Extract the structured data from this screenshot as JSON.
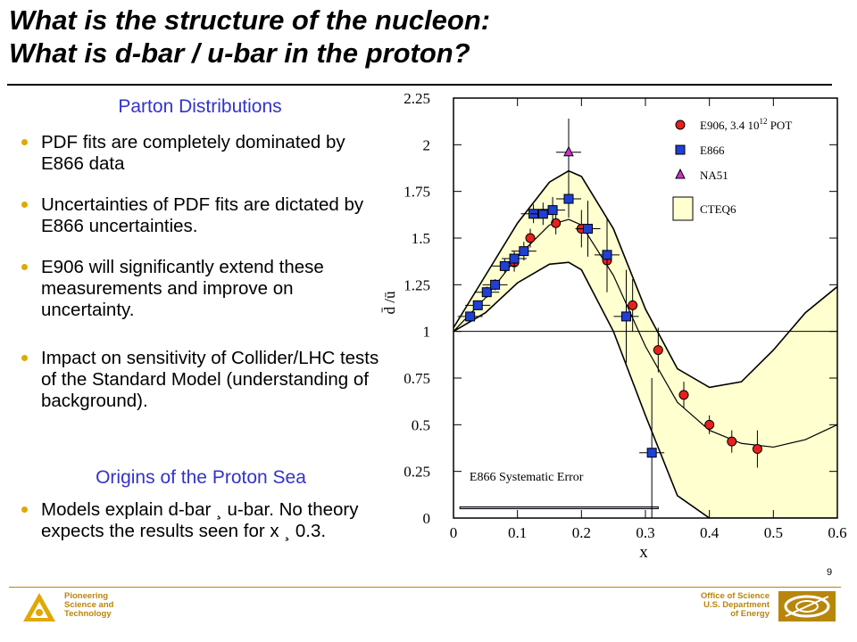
{
  "title_line1": "What is the structure of the nucleon:",
  "title_line2": "What is d-bar / u-bar in the proton?",
  "section1_heading": "Parton Distributions",
  "section2_heading": "Origins of the Proton Sea",
  "bullets": [
    "PDF fits are completely dominated by E866 data",
    "Uncertainties of PDF fits are dictated by E866 uncertainties.",
    "E906 will significantly extend these measurements and improve on uncertainty.",
    "Impact on sensitivity of Collider/LHC tests of the Standard Model (understanding of background).",
    "Models explain d-bar ¸ u-bar.  No theory expects the results seen for x ¸ 0.3."
  ],
  "page_number": "9",
  "footer_left": [
    "Pioneering",
    "Science and",
    "Technology"
  ],
  "footer_right": [
    "Office of Science",
    "U.S. Department",
    "of Energy"
  ],
  "colors": {
    "heading_blue": "#3333cc",
    "bullet_gold": "#e0a800",
    "footer_gold": "#b8860b",
    "e906_red": "#e8201c",
    "e866_blue": "#1f3fd6",
    "na51_magenta": "#cc33cc",
    "cteq6_fill": "#ffffd0"
  },
  "chart_data": {
    "type": "scatter",
    "xlabel": "x",
    "ylabel": "d̄ /ū",
    "xlim": [
      0,
      0.6
    ],
    "ylim": [
      0,
      2.25
    ],
    "xticks": [
      "0",
      "0.1",
      "0.2",
      "0.3",
      "0.4",
      "0.5",
      "0.6"
    ],
    "yticks": [
      "0",
      "0.25",
      "0.5",
      "0.75",
      "1",
      "1.25",
      "1.5",
      "1.75",
      "2",
      "2.25"
    ],
    "reference_line_y": 1,
    "legend_position": "top-right",
    "legend": [
      {
        "name": "E906, 3.4 10",
        "sup": "12",
        "suffix": " POT",
        "marker": "circle"
      },
      {
        "name": "E866",
        "marker": "square"
      },
      {
        "name": "NA51",
        "marker": "triangle"
      },
      {
        "name": "CTEQ6",
        "marker": "band"
      }
    ],
    "systematic_label": "E866 Systematic Error",
    "series": [
      {
        "name": "E906, 3.4 10^12 POT",
        "marker": "circle",
        "x": [
          0.095,
          0.12,
          0.16,
          0.2,
          0.24,
          0.28,
          0.32,
          0.36,
          0.4,
          0.435,
          0.475
        ],
        "y": [
          1.37,
          1.5,
          1.58,
          1.55,
          1.38,
          1.14,
          0.9,
          0.66,
          0.5,
          0.41,
          0.37
        ],
        "yerr": [
          0.05,
          0.05,
          0.06,
          0.1,
          0.13,
          0.14,
          0.12,
          0.07,
          0.05,
          0.06,
          0.1
        ]
      },
      {
        "name": "E866",
        "marker": "square",
        "x": [
          0.026,
          0.038,
          0.052,
          0.065,
          0.08,
          0.095,
          0.11,
          0.125,
          0.14,
          0.155,
          0.18,
          0.21,
          0.24,
          0.27,
          0.31
        ],
        "y": [
          1.08,
          1.14,
          1.21,
          1.25,
          1.35,
          1.39,
          1.43,
          1.63,
          1.63,
          1.65,
          1.71,
          1.55,
          1.41,
          1.08,
          0.35
        ],
        "yerr": [
          0.02,
          0.02,
          0.03,
          0.03,
          0.04,
          0.04,
          0.05,
          0.05,
          0.06,
          0.07,
          0.1,
          0.15,
          0.2,
          0.25,
          0.4
        ]
      },
      {
        "name": "NA51",
        "marker": "triangle",
        "x": [
          0.18
        ],
        "y": [
          1.96
        ],
        "yerr": [
          0.18
        ]
      }
    ],
    "band": {
      "name": "CTEQ6",
      "x": [
        0,
        0.05,
        0.1,
        0.15,
        0.18,
        0.2,
        0.25,
        0.3,
        0.35,
        0.4,
        0.45,
        0.5,
        0.55,
        0.6
      ],
      "upper": [
        1.02,
        1.3,
        1.58,
        1.8,
        1.86,
        1.83,
        1.55,
        1.12,
        0.8,
        0.7,
        0.73,
        0.9,
        1.1,
        1.24
      ],
      "lower": [
        1.0,
        1.1,
        1.26,
        1.36,
        1.37,
        1.33,
        1.0,
        0.55,
        0.12,
        0,
        0,
        0,
        0,
        0
      ],
      "central": [
        1.0,
        1.18,
        1.4,
        1.57,
        1.6,
        1.57,
        1.3,
        0.92,
        0.62,
        0.47,
        0.4,
        0.38,
        0.42,
        0.5
      ]
    },
    "systematic_band": {
      "x": [
        0.01,
        0.32
      ],
      "y": [
        0.05,
        0.06
      ]
    }
  }
}
